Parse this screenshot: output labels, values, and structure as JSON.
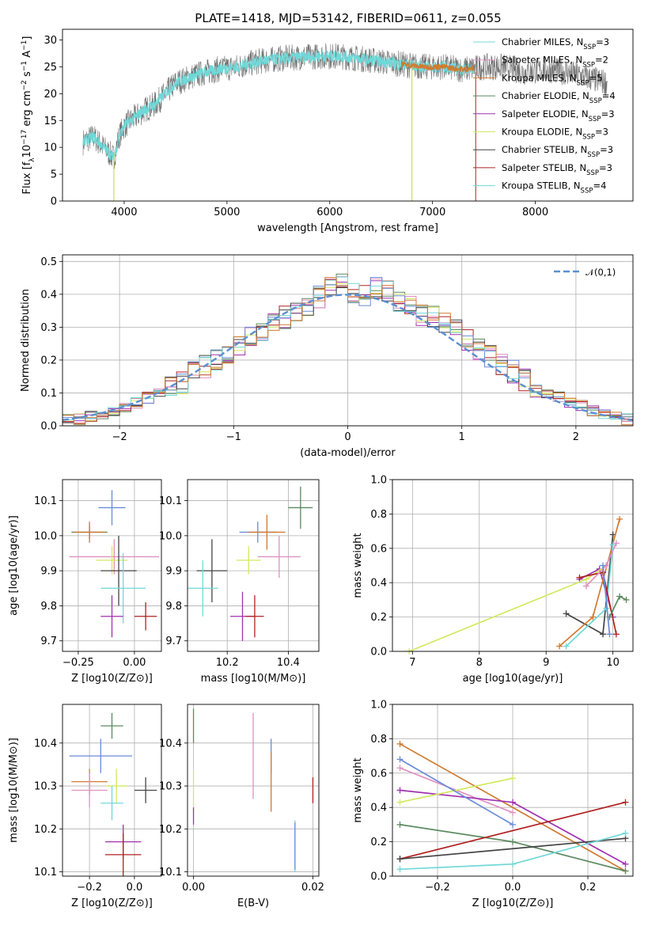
{
  "chart_data": [
    {
      "id": "spectrum",
      "type": "line",
      "title": "PLATE=1418, MJD=53142, FIBERID=0611, z=0.055",
      "xlabel": "wavelength [Angstrom, rest frame]",
      "ylabel": "Flux [f_λ 10^-17 erg cm^-2 s^-1 A^-1]",
      "xlim": [
        3400,
        8950
      ],
      "ylim": [
        0,
        32
      ],
      "xticks": [
        "4000",
        "5000",
        "6000",
        "7000",
        "8000"
      ],
      "yticks": [
        "0",
        "5",
        "10",
        "15",
        "20",
        "25",
        "30"
      ],
      "grid": false,
      "legend_position": "right",
      "series_names": [
        "Chabrier MILES, N_SSP=3",
        "Salpeter MILES, N_SSP=2",
        "Kroupa MILES, N_SSP=5",
        "Chabrier ELODIE, N_SSP=4",
        "Salpeter ELODIE, N_SSP=3",
        "Kroupa ELODIE, N_SSP=3",
        "Chabrier STELIB, N_SSP=3",
        "Salpeter STELIB, N_SSP=3",
        "Kroupa STELIB, N_SSP=4"
      ],
      "continuum_x": [
        3600,
        3700,
        3800,
        3900,
        3950,
        4000,
        4100,
        4200,
        4300,
        4400,
        4500,
        4700,
        4900,
        5100,
        5300,
        5500,
        5700,
        5900,
        6100,
        6300,
        6500,
        6700,
        6900,
        7100,
        7300,
        7500,
        7700,
        7900,
        8100,
        8300,
        8500,
        8700
      ],
      "continuum_y": [
        11,
        12,
        10,
        8,
        12,
        14,
        15.5,
        17,
        18,
        20,
        22,
        23.5,
        24.5,
        25,
        26,
        26.5,
        26.8,
        27,
        27,
        26.5,
        26,
        25.5,
        25,
        25,
        24.5,
        25,
        25,
        24,
        24.5,
        24,
        23,
        22
      ]
    },
    {
      "id": "residuals",
      "type": "histogram",
      "xlabel": "(data-model)/error",
      "ylabel": "Normed distribution",
      "xlim": [
        -2.5,
        2.5
      ],
      "ylim": [
        0,
        0.52
      ],
      "xticks": [
        "−2",
        "−1",
        "0",
        "1",
        "2"
      ],
      "yticks": [
        "0.0",
        "0.1",
        "0.2",
        "0.3",
        "0.4",
        "0.5"
      ],
      "grid": true,
      "legend": "𝒩(0,1)",
      "legend_position": "top-right",
      "bins": [
        -2.5,
        -2.4,
        -2.3,
        -2.2,
        -2.1,
        -2.0,
        -1.9,
        -1.8,
        -1.7,
        -1.6,
        -1.5,
        -1.4,
        -1.3,
        -1.2,
        -1.1,
        -1.0,
        -0.9,
        -0.8,
        -0.7,
        -0.6,
        -0.5,
        -0.4,
        -0.3,
        -0.2,
        -0.1,
        0.0,
        0.1,
        0.2,
        0.3,
        0.4,
        0.5,
        0.6,
        0.7,
        0.8,
        0.9,
        1.0,
        1.1,
        1.2,
        1.3,
        1.4,
        1.5,
        1.6,
        1.7,
        1.8,
        1.9,
        2.0,
        2.1,
        2.2,
        2.3,
        2.4,
        2.5
      ],
      "heights": [
        0.02,
        0.02,
        0.03,
        0.035,
        0.045,
        0.055,
        0.07,
        0.085,
        0.1,
        0.12,
        0.13,
        0.16,
        0.18,
        0.2,
        0.22,
        0.25,
        0.27,
        0.29,
        0.31,
        0.33,
        0.35,
        0.37,
        0.39,
        0.42,
        0.43,
        0.4,
        0.4,
        0.42,
        0.41,
        0.38,
        0.36,
        0.34,
        0.33,
        0.31,
        0.29,
        0.26,
        0.23,
        0.21,
        0.19,
        0.165,
        0.14,
        0.12,
        0.1,
        0.085,
        0.07,
        0.06,
        0.045,
        0.035,
        0.025,
        0.02
      ]
    },
    {
      "id": "age_vs_Z",
      "type": "scatter",
      "xlabel": "Z [log10(Z/Z⊙)]",
      "ylabel": "age [log10(age/yr)]",
      "xlim": [
        -0.32,
        0.12
      ],
      "ylim": [
        9.67,
        10.16
      ],
      "xticks": [
        "−0.25",
        "0.00"
      ],
      "yticks": [
        "9.7",
        "9.8",
        "9.9",
        "10.0",
        "10.1"
      ],
      "grid": true,
      "points": [
        {
          "x": -0.2,
          "y": 10.01,
          "xerr": 0.08,
          "yerr": 0.02
        },
        {
          "x": -0.1,
          "y": 10.08,
          "xerr": 0.06,
          "yerr": 0.05
        },
        {
          "x": -0.2,
          "y": 10.01,
          "xerr": 0.07,
          "yerr": 0.03
        },
        {
          "x": -0.09,
          "y": 9.94,
          "xerr": 0.2,
          "yerr": 0.05
        },
        {
          "x": -0.1,
          "y": 9.93,
          "xerr": 0.07,
          "yerr": 0.04
        },
        {
          "x": -0.07,
          "y": 9.9,
          "xerr": 0.08,
          "yerr": 0.1
        },
        {
          "x": -0.05,
          "y": 9.85,
          "xerr": 0.1,
          "yerr": 0.1
        },
        {
          "x": -0.1,
          "y": 9.77,
          "xerr": 0.05,
          "yerr": 0.06
        },
        {
          "x": 0.05,
          "y": 9.77,
          "xerr": 0.05,
          "yerr": 0.04
        }
      ]
    },
    {
      "id": "age_vs_mass",
      "type": "scatter",
      "xlabel": "mass [log10(M/M⊙)]",
      "ylabel": "",
      "xlim": [
        10.07,
        10.5
      ],
      "ylim": [
        9.67,
        10.16
      ],
      "xticks": [
        "10.2",
        "10.4"
      ],
      "yticks": [
        "9.7",
        "9.8",
        "9.9",
        "10.0",
        "10.1"
      ],
      "grid": true,
      "points": [
        {
          "x": 10.44,
          "y": 10.08,
          "xerr": 0.04,
          "yerr": 0.06
        },
        {
          "x": 10.3,
          "y": 10.01,
          "xerr": 0.06,
          "yerr": 0.03
        },
        {
          "x": 10.33,
          "y": 10.01,
          "xerr": 0.06,
          "yerr": 0.05
        },
        {
          "x": 10.37,
          "y": 9.94,
          "xerr": 0.07,
          "yerr": 0.06
        },
        {
          "x": 10.27,
          "y": 9.93,
          "xerr": 0.04,
          "yerr": 0.04
        },
        {
          "x": 10.15,
          "y": 9.9,
          "xerr": 0.05,
          "yerr": 0.09
        },
        {
          "x": 10.12,
          "y": 9.85,
          "xerr": 0.05,
          "yerr": 0.08
        },
        {
          "x": 10.25,
          "y": 9.77,
          "xerr": 0.04,
          "yerr": 0.07
        },
        {
          "x": 10.29,
          "y": 9.77,
          "xerr": 0.03,
          "yerr": 0.06
        }
      ]
    },
    {
      "id": "weight_vs_age",
      "type": "line",
      "xlabel": "age [log10(age/yr)]",
      "ylabel": "mass weight",
      "xlim": [
        6.7,
        10.3
      ],
      "ylim": [
        0,
        1.0
      ],
      "xticks": [
        "7",
        "8",
        "9",
        "10"
      ],
      "yticks": [
        "0.0",
        "0.2",
        "0.4",
        "0.6",
        "0.8",
        "1.0"
      ],
      "grid": true,
      "series": [
        {
          "x": [
            9.3,
            9.85,
            10.0
          ],
          "y": [
            0.22,
            0.1,
            0.68
          ],
          "color": "#444444"
        },
        {
          "x": [
            9.5,
            9.8,
            10.0
          ],
          "y": [
            0.42,
            0.48,
            0.2
          ],
          "color": "#a030b0"
        },
        {
          "x": [
            9.2,
            9.7,
            10.1
          ],
          "y": [
            0.03,
            0.2,
            0.77
          ],
          "color": "#d07a30"
        },
        {
          "x": [
            6.95,
            9.6,
            9.9
          ],
          "y": [
            0.0,
            0.42,
            0.5
          ],
          "color": "#d4e860"
        },
        {
          "x": [
            9.3,
            9.9,
            10.0
          ],
          "y": [
            0.03,
            0.25,
            0.62
          ],
          "color": "#70d8d8"
        },
        {
          "x": [
            9.5,
            9.85,
            10.05
          ],
          "y": [
            0.43,
            0.46,
            0.1
          ],
          "color": "#b02020"
        },
        {
          "x": [
            9.6,
            9.9,
            10.05
          ],
          "y": [
            0.38,
            0.5,
            0.63
          ],
          "color": "#e090c0"
        },
        {
          "x": [
            9.95,
            10.1,
            10.2
          ],
          "y": [
            0.2,
            0.32,
            0.3
          ],
          "color": "#5b8a60"
        },
        {
          "x": [
            9.85,
            9.95
          ],
          "y": [
            0.5,
            0.1
          ],
          "color": "#6a8cd8"
        }
      ]
    },
    {
      "id": "mass_vs_Z",
      "type": "scatter",
      "xlabel": "Z [log10(Z/Z⊙)]",
      "ylabel": "mass [log10(M/M⊙)]",
      "xlim": [
        -0.32,
        0.12
      ],
      "ylim": [
        10.09,
        10.49
      ],
      "xticks": [
        "−0.2",
        "0.0"
      ],
      "yticks": [
        "10.1",
        "10.2",
        "10.3",
        "10.4"
      ],
      "grid": true,
      "points": [
        {
          "x": -0.1,
          "y": 10.44,
          "xerr": 0.05,
          "yerr": 0.03
        },
        {
          "x": -0.15,
          "y": 10.37,
          "xerr": 0.14,
          "yerr": 0.04
        },
        {
          "x": -0.2,
          "y": 10.31,
          "xerr": 0.08,
          "yerr": 0.03
        },
        {
          "x": -0.2,
          "y": 10.29,
          "xerr": 0.08,
          "yerr": 0.04
        },
        {
          "x": -0.08,
          "y": 10.3,
          "xerr": 0.05,
          "yerr": 0.04
        },
        {
          "x": 0.05,
          "y": 10.29,
          "xerr": 0.05,
          "yerr": 0.03
        },
        {
          "x": -0.1,
          "y": 10.26,
          "xerr": 0.05,
          "yerr": 0.04
        },
        {
          "x": -0.05,
          "y": 10.17,
          "xerr": 0.08,
          "yerr": 0.04
        },
        {
          "x": -0.05,
          "y": 10.14,
          "xerr": 0.08,
          "yerr": 0.05
        }
      ]
    },
    {
      "id": "mass_vs_ebv",
      "type": "scatter",
      "xlabel": "E(B-V)",
      "ylabel": "",
      "xlim": [
        -0.001,
        0.021
      ],
      "ylim": [
        10.09,
        10.49
      ],
      "xticks": [
        "0.00",
        "0.02"
      ],
      "yticks": [
        "10.1",
        "10.2",
        "10.3",
        "10.4"
      ],
      "grid": true,
      "points": [
        {
          "x": 0.0,
          "y": 10.44,
          "xerr": 0.0,
          "yerr": 0.04
        },
        {
          "x": 0.0,
          "y": 10.29,
          "xerr": 0.0,
          "yerr": 0.05
        },
        {
          "x": 0.0,
          "y": 10.23,
          "xerr": 0.0,
          "yerr": 0.02
        },
        {
          "x": 0.01,
          "y": 10.37,
          "xerr": 0.0,
          "yerr": 0.1
        },
        {
          "x": 0.013,
          "y": 10.37,
          "xerr": 0.0,
          "yerr": 0.04
        },
        {
          "x": 0.013,
          "y": 10.31,
          "xerr": 0.0,
          "yerr": 0.07
        },
        {
          "x": 0.017,
          "y": 10.16,
          "xerr": 0.0,
          "yerr": 0.06
        },
        {
          "x": 0.017,
          "y": 10.16,
          "xerr": 0.0,
          "yerr": 0.055
        },
        {
          "x": 0.02,
          "y": 10.29,
          "xerr": 0.0,
          "yerr": 0.03
        }
      ]
    },
    {
      "id": "weight_vs_Z",
      "type": "line",
      "xlabel": "Z [log10(Z/Z⊙)]",
      "ylabel": "mass weight",
      "xlim": [
        -0.32,
        0.32
      ],
      "ylim": [
        0,
        1.0
      ],
      "xticks": [
        "−0.2",
        "0.0",
        "0.2"
      ],
      "yticks": [
        "0.0",
        "0.2",
        "0.4",
        "0.6",
        "0.8",
        "1.0"
      ],
      "grid": true,
      "series": [
        {
          "x": [
            -0.3,
            0.3
          ],
          "y": [
            0.77,
            0.03
          ],
          "color": "#d07a30"
        },
        {
          "x": [
            -0.3,
            0.0
          ],
          "y": [
            0.63,
            0.37
          ],
          "color": "#e090c0"
        },
        {
          "x": [
            -0.3,
            0.0,
            0.3
          ],
          "y": [
            0.5,
            0.43,
            0.07
          ],
          "color": "#a030b0"
        },
        {
          "x": [
            -0.3,
            0.0
          ],
          "y": [
            0.43,
            0.57
          ],
          "color": "#d4e860"
        },
        {
          "x": [
            -0.3,
            0.0,
            0.3
          ],
          "y": [
            0.3,
            0.2,
            0.03
          ],
          "color": "#5b8a60"
        },
        {
          "x": [
            -0.3,
            0.3
          ],
          "y": [
            0.1,
            0.43
          ],
          "color": "#b02020"
        },
        {
          "x": [
            -0.3,
            0.3
          ],
          "y": [
            0.1,
            0.22
          ],
          "color": "#444444"
        },
        {
          "x": [
            -0.3,
            0.0,
            0.3
          ],
          "y": [
            0.04,
            0.07,
            0.25
          ],
          "color": "#70d8d8"
        },
        {
          "x": [
            -0.3,
            0.0
          ],
          "y": [
            0.68,
            0.3
          ],
          "color": "#6a8cd8"
        }
      ]
    }
  ],
  "colors": [
    "#444444",
    "#e090c0",
    "#d07a30",
    "#5b8a60",
    "#a030b0",
    "#d4e860",
    "#555555",
    "#b02020",
    "#70d8d8",
    "#6a8cd8"
  ]
}
